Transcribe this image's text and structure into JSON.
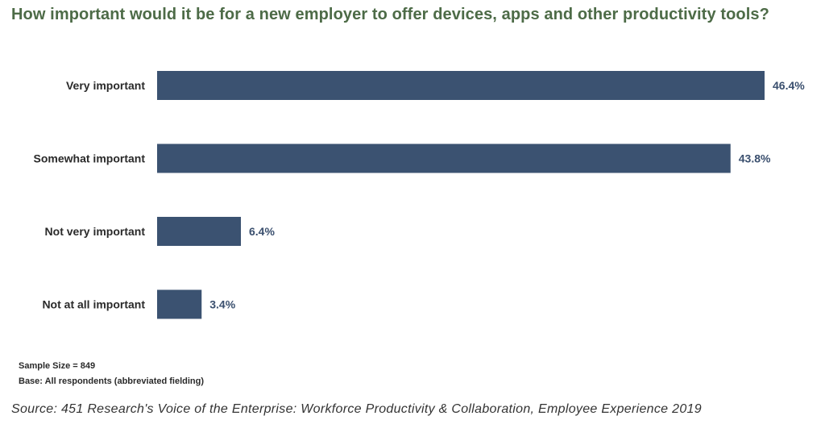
{
  "chart_data": {
    "type": "bar",
    "orientation": "horizontal",
    "title": "How important would it be for a new employer to offer devices, apps and other productivity tools?",
    "categories": [
      "Very important",
      "Somewhat important",
      "Not very important",
      "Not at all important"
    ],
    "values": [
      46.4,
      43.8,
      6.4,
      3.4
    ],
    "value_labels": [
      "46.4%",
      "43.8%",
      "6.4%",
      "3.4%"
    ],
    "unit": "%",
    "xlim": [
      0,
      46.4
    ],
    "grid": false,
    "bar_color": "#3b5271"
  },
  "notes": {
    "sample_size": "Sample Size = 849",
    "base": "Base: All respondents (abbreviated fielding)"
  },
  "source": "Source: 451 Research's Voice of the Enterprise: Workforce Productivity & Collaboration, Employee Experience 2019"
}
